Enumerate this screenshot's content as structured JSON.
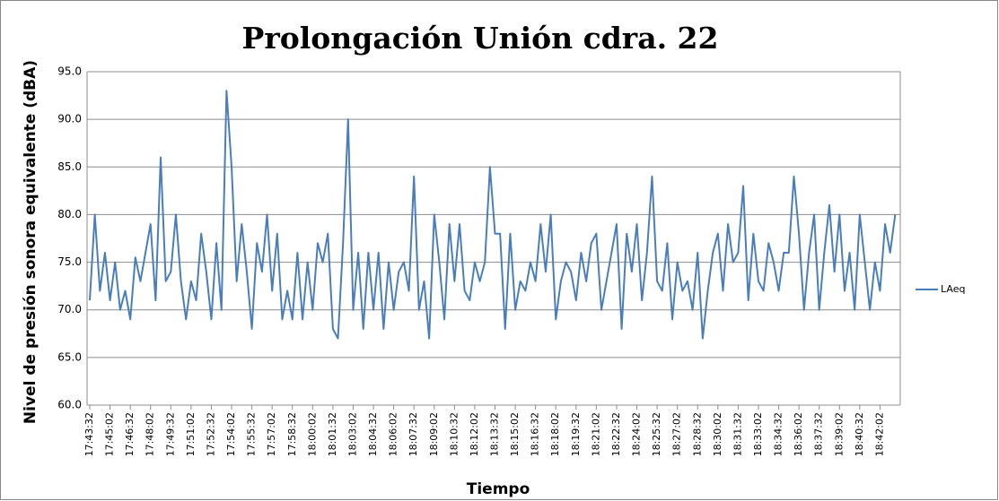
{
  "chart_data": {
    "type": "line",
    "title": "Prolongación Unión cdra. 22",
    "y_label": "Nivel de presión sonora equivalente (dBA)",
    "x_label": "Tiempo",
    "categories": [
      "17:43:32",
      null,
      null,
      null,
      "17:45:02",
      null,
      null,
      null,
      "17:46:32",
      null,
      null,
      null,
      "17:48:02",
      null,
      null,
      null,
      "17:49:32",
      null,
      null,
      null,
      "17:51:02",
      null,
      null,
      null,
      "17:52:32",
      null,
      null,
      null,
      "17:54:02",
      null,
      null,
      null,
      "17:55:32",
      null,
      null,
      null,
      "17:57:02",
      null,
      null,
      null,
      "17:58:32",
      null,
      null,
      null,
      "18:00:02",
      null,
      null,
      null,
      "18:01:32",
      null,
      null,
      null,
      "18:03:02",
      null,
      null,
      null,
      "18:04:32",
      null,
      null,
      null,
      "18:06:02",
      null,
      null,
      null,
      "18:07:32",
      null,
      null,
      null,
      "18:09:02",
      null,
      null,
      null,
      "18:10:32",
      null,
      null,
      null,
      "18:12:02",
      null,
      null,
      null,
      "18:13:32",
      null,
      null,
      null,
      "18:15:02",
      null,
      null,
      null,
      "18:16:32",
      null,
      null,
      null,
      "18:18:02",
      null,
      null,
      null,
      "18:19:32",
      null,
      null,
      null,
      "18:21:02",
      null,
      null,
      null,
      "18:22:32",
      null,
      null,
      null,
      "18:24:02",
      null,
      null,
      null,
      "18:25:32",
      null,
      null,
      null,
      "18:27:02",
      null,
      null,
      null,
      "18:28:32",
      null,
      null,
      null,
      "18:30:02",
      null,
      null,
      null,
      "18:31:32",
      null,
      null,
      null,
      "18:33:02",
      null,
      null,
      null,
      "18:34:32",
      null,
      null,
      null,
      "18:36:02",
      null,
      null,
      null,
      "18:37:32",
      null,
      null,
      null,
      "18:39:02",
      null,
      null,
      null,
      "18:40:32",
      null,
      null,
      null,
      "18:42:02",
      null,
      null,
      null
    ],
    "series": [
      {
        "name": "LAeq",
        "color": "#4a7ebb",
        "values": [
          71,
          80,
          72,
          76,
          71,
          75,
          70,
          72,
          69,
          75.5,
          73,
          76,
          79,
          71,
          86,
          73,
          74,
          80,
          73,
          69,
          73,
          71,
          78,
          74,
          69,
          77,
          70,
          93,
          85,
          73,
          79,
          74,
          68,
          77,
          74,
          80,
          72,
          78,
          69,
          72,
          69,
          76,
          69,
          75,
          70,
          77,
          75,
          78,
          68,
          67,
          77,
          90,
          70,
          76,
          68,
          76,
          70,
          76,
          68,
          75,
          70,
          74,
          75,
          72,
          84,
          70,
          73,
          67,
          80,
          75,
          69,
          79,
          73,
          79,
          72,
          71,
          75,
          73,
          75,
          85,
          78,
          78,
          68,
          78,
          70,
          73,
          72,
          75,
          73,
          79,
          74,
          80,
          69,
          73,
          75,
          74,
          71,
          76,
          73,
          77,
          78,
          70,
          73,
          76,
          79,
          68,
          78,
          74,
          79,
          71,
          76,
          84,
          73,
          72,
          77,
          69,
          75,
          72,
          73,
          70,
          76,
          67,
          72,
          76,
          78,
          72,
          79,
          75,
          76,
          83,
          71,
          78,
          73,
          72,
          77,
          75,
          72,
          76,
          76,
          84,
          78,
          70,
          76,
          80,
          70,
          76,
          81,
          74,
          80,
          72,
          76,
          70,
          80,
          75,
          70,
          75,
          72,
          79,
          76,
          80
        ]
      }
    ],
    "ylim": [
      60,
      95
    ],
    "yticks": [
      {
        "value": 60,
        "label": "60.0"
      },
      {
        "value": 65,
        "label": "65.0"
      },
      {
        "value": 70,
        "label": "70.0"
      },
      {
        "value": 75,
        "label": "75.0"
      },
      {
        "value": 80,
        "label": "80.0"
      },
      {
        "value": 85,
        "label": "85.0"
      },
      {
        "value": 90,
        "label": "90.0"
      },
      {
        "value": 95,
        "label": "95.0"
      }
    ],
    "grid": true
  }
}
